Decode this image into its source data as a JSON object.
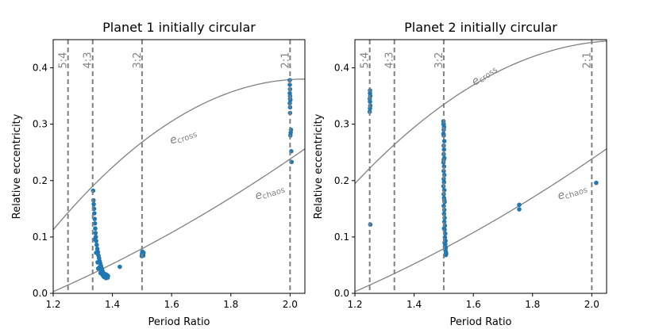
{
  "chart_data": [
    {
      "type": "scatter",
      "title": "Planet 1 initially circular",
      "xlabel": "Period Ratio",
      "ylabel": "Relative eccentricity",
      "xlim": [
        1.2,
        2.05
      ],
      "ylim": [
        0.0,
        0.45
      ],
      "xticks": [
        {
          "v": 1.2,
          "label": "1.2"
        },
        {
          "v": 1.4,
          "label": "1.4"
        },
        {
          "v": 1.6,
          "label": "1.6"
        },
        {
          "v": 1.8,
          "label": "1.8"
        },
        {
          "v": 2.0,
          "label": "2.0"
        }
      ],
      "yticks": [
        {
          "v": 0.0,
          "label": "0.0"
        },
        {
          "v": 0.1,
          "label": "0.1"
        },
        {
          "v": 0.2,
          "label": "0.2"
        },
        {
          "v": 0.3,
          "label": "0.3"
        },
        {
          "v": 0.4,
          "label": "0.4"
        }
      ],
      "resonances": [
        {
          "x": 1.25,
          "label": "5:4"
        },
        {
          "x": 1.3333,
          "label": "4:3"
        },
        {
          "x": 1.5,
          "label": "3:2"
        },
        {
          "x": 2.0,
          "label": "2:1"
        }
      ],
      "curve_labels": {
        "cross": {
          "main": "e",
          "sub": "cross"
        },
        "chaos": {
          "main": "e",
          "sub": "chaos"
        }
      },
      "points": [
        [
          1.335,
          0.182
        ],
        [
          1.336,
          0.165
        ],
        [
          1.337,
          0.158
        ],
        [
          1.338,
          0.15
        ],
        [
          1.339,
          0.142
        ],
        [
          1.34,
          0.132
        ],
        [
          1.341,
          0.124
        ],
        [
          1.342,
          0.115
        ],
        [
          1.343,
          0.107
        ],
        [
          1.344,
          0.1
        ],
        [
          1.345,
          0.093
        ],
        [
          1.347,
          0.086
        ],
        [
          1.349,
          0.079
        ],
        [
          1.351,
          0.073
        ],
        [
          1.353,
          0.067
        ],
        [
          1.355,
          0.062
        ],
        [
          1.357,
          0.057
        ],
        [
          1.359,
          0.053
        ],
        [
          1.361,
          0.049
        ],
        [
          1.363,
          0.045
        ],
        [
          1.365,
          0.042
        ],
        [
          1.367,
          0.039
        ],
        [
          1.369,
          0.036
        ],
        [
          1.371,
          0.034
        ],
        [
          1.373,
          0.032
        ],
        [
          1.375,
          0.031
        ],
        [
          1.377,
          0.03
        ],
        [
          1.379,
          0.029
        ],
        [
          1.381,
          0.029
        ],
        [
          1.383,
          0.03
        ],
        [
          1.385,
          0.031
        ],
        [
          1.38,
          0.033
        ],
        [
          1.372,
          0.029
        ],
        [
          1.36,
          0.036
        ],
        [
          1.352,
          0.044
        ],
        [
          1.366,
          0.033
        ],
        [
          1.376,
          0.034
        ],
        [
          1.384,
          0.028
        ],
        [
          1.34,
          0.096
        ],
        [
          1.345,
          0.072
        ],
        [
          1.35,
          0.055
        ],
        [
          1.356,
          0.046
        ],
        [
          1.362,
          0.038
        ],
        [
          1.37,
          0.03
        ],
        [
          1.378,
          0.027
        ],
        [
          1.425,
          0.047
        ],
        [
          1.501,
          0.074
        ],
        [
          1.502,
          0.071
        ],
        [
          1.503,
          0.069
        ],
        [
          1.504,
          0.067
        ],
        [
          1.505,
          0.072
        ],
        [
          1.499,
          0.066
        ],
        [
          1.5,
          0.07
        ],
        [
          1.999,
          0.378
        ],
        [
          1.999,
          0.37
        ],
        [
          2.0,
          0.362
        ],
        [
          1.999,
          0.355
        ],
        [
          2.0,
          0.35
        ],
        [
          2.001,
          0.343
        ],
        [
          1.999,
          0.337
        ],
        [
          2.0,
          0.33
        ],
        [
          2.0,
          0.32
        ],
        [
          2.003,
          0.29
        ],
        [
          2.002,
          0.285
        ],
        [
          2.001,
          0.28
        ],
        [
          2.004,
          0.252
        ],
        [
          2.005,
          0.233
        ],
        [
          2.0,
          0.345
        ]
      ]
    },
    {
      "type": "scatter",
      "title": "Planet 2 initially circular",
      "xlabel": "Period Ratio",
      "ylabel": "Relative eccentricity",
      "xlim": [
        1.2,
        2.05
      ],
      "ylim": [
        0.0,
        0.45
      ],
      "xticks": [
        {
          "v": 1.2,
          "label": "1.2"
        },
        {
          "v": 1.4,
          "label": "1.4"
        },
        {
          "v": 1.6,
          "label": "1.6"
        },
        {
          "v": 1.8,
          "label": "1.8"
        },
        {
          "v": 2.0,
          "label": "2.0"
        }
      ],
      "yticks": [
        {
          "v": 0.0,
          "label": "0.0"
        },
        {
          "v": 0.1,
          "label": "0.1"
        },
        {
          "v": 0.2,
          "label": "0.2"
        },
        {
          "v": 0.3,
          "label": "0.3"
        },
        {
          "v": 0.4,
          "label": "0.4"
        }
      ],
      "resonances": [
        {
          "x": 1.25,
          "label": "5:4"
        },
        {
          "x": 1.3333,
          "label": "4:3"
        },
        {
          "x": 1.5,
          "label": "3:2"
        },
        {
          "x": 2.0,
          "label": "2:1"
        }
      ],
      "curve_labels": {
        "cross": {
          "main": "e",
          "sub": "cross"
        },
        "chaos": {
          "main": "e",
          "sub": "chaos"
        }
      },
      "points": [
        [
          1.251,
          0.36
        ],
        [
          1.251,
          0.355
        ],
        [
          1.252,
          0.35
        ],
        [
          1.25,
          0.345
        ],
        [
          1.251,
          0.34
        ],
        [
          1.252,
          0.333
        ],
        [
          1.251,
          0.328
        ],
        [
          1.25,
          0.322
        ],
        [
          1.252,
          0.122
        ],
        [
          1.499,
          0.305
        ],
        [
          1.5,
          0.3
        ],
        [
          1.501,
          0.295
        ],
        [
          1.5,
          0.29
        ],
        [
          1.499,
          0.283
        ],
        [
          1.502,
          0.27
        ],
        [
          1.5,
          0.262
        ],
        [
          1.501,
          0.255
        ],
        [
          1.5,
          0.247
        ],
        [
          1.502,
          0.24
        ],
        [
          1.499,
          0.232
        ],
        [
          1.501,
          0.225
        ],
        [
          1.5,
          0.217
        ],
        [
          1.502,
          0.21
        ],
        [
          1.5,
          0.203
        ],
        [
          1.501,
          0.197
        ],
        [
          1.499,
          0.19
        ],
        [
          1.502,
          0.183
        ],
        [
          1.5,
          0.176
        ],
        [
          1.501,
          0.169
        ],
        [
          1.503,
          0.162
        ],
        [
          1.5,
          0.155
        ],
        [
          1.502,
          0.148
        ],
        [
          1.501,
          0.141
        ],
        [
          1.503,
          0.134
        ],
        [
          1.502,
          0.127
        ],
        [
          1.504,
          0.12
        ],
        [
          1.503,
          0.113
        ],
        [
          1.505,
          0.106
        ],
        [
          1.504,
          0.099
        ],
        [
          1.506,
          0.093
        ],
        [
          1.505,
          0.087
        ],
        [
          1.507,
          0.081
        ],
        [
          1.506,
          0.076
        ],
        [
          1.508,
          0.072
        ],
        [
          1.507,
          0.068
        ],
        [
          1.508,
          0.07
        ],
        [
          1.504,
          0.083
        ],
        [
          1.503,
          0.09
        ],
        [
          1.501,
          0.115
        ],
        [
          1.502,
          0.165
        ],
        [
          1.5,
          0.237
        ],
        [
          1.5,
          0.28
        ],
        [
          1.499,
          0.3
        ],
        [
          1.755,
          0.157
        ],
        [
          1.755,
          0.149
        ],
        [
          2.015,
          0.196
        ]
      ]
    }
  ]
}
